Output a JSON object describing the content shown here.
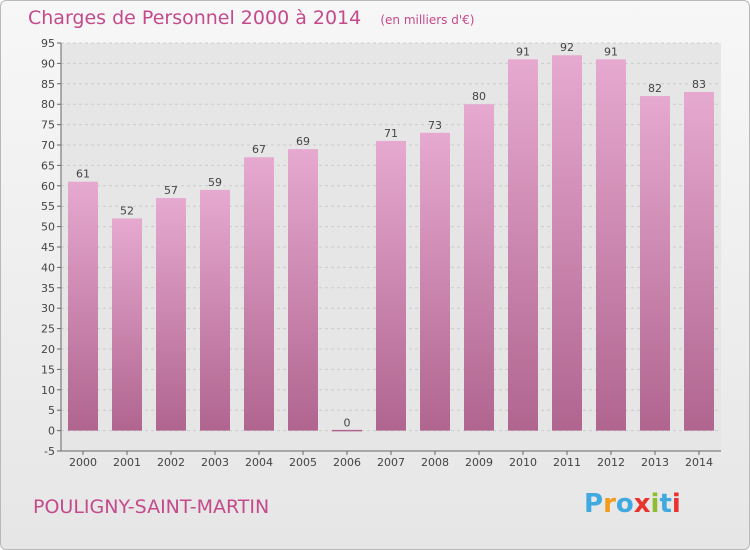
{
  "header": {
    "title": "Charges de Personnel 2000 à 2014",
    "subtitle": "(en milliers d'€)"
  },
  "footer": {
    "commune": "POULIGNY-SAINT-MARTIN",
    "logo_text": "Proxiti",
    "logo_colors": [
      "#3fa9e0",
      "#f29b1f",
      "#3fa9e0",
      "#e8342f",
      "#8ebd2f",
      "#3fa9e0",
      "#e8342f"
    ]
  },
  "colors": {
    "accent": "#c44a8c",
    "bar_top": "#e6a9cf",
    "bar_bottom": "#b0658f",
    "grid": "#cccccc",
    "plot_background": "#e6e6e6"
  },
  "chart_data": {
    "type": "bar",
    "categories": [
      "2000",
      "2001",
      "2002",
      "2003",
      "2004",
      "2005",
      "2006",
      "2007",
      "2008",
      "2009",
      "2010",
      "2011",
      "2012",
      "2013",
      "2014"
    ],
    "values": [
      61,
      52,
      57,
      59,
      67,
      69,
      0,
      71,
      73,
      80,
      91,
      92,
      91,
      82,
      83
    ],
    "ylim": [
      -5,
      95
    ],
    "ytick_step": 5,
    "grid": true
  }
}
